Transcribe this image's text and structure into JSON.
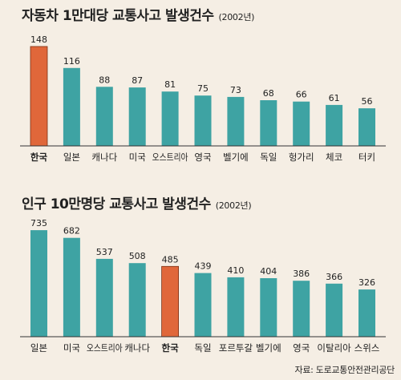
{
  "chart_data": [
    {
      "type": "bar",
      "title": "자동차 1만대당 교통사고 발생건수",
      "subtitle": "(2002년)",
      "categories": [
        "한국",
        "일본",
        "캐나다",
        "미국",
        "오스트리아",
        "영국",
        "벨기에",
        "독일",
        "헝가리",
        "체코",
        "터키"
      ],
      "values": [
        148,
        116,
        88,
        87,
        81,
        75,
        73,
        68,
        66,
        61,
        56
      ],
      "highlight_category": "한국",
      "ylim": [
        0,
        160
      ],
      "grid": false,
      "colors": {
        "bar": "#3ea3a3",
        "highlight": "#e0673a"
      }
    },
    {
      "type": "bar",
      "title": "인구 10만명당 교통사고 발생건수",
      "subtitle": "(2002년)",
      "categories": [
        "일본",
        "미국",
        "오스트리아",
        "캐나다",
        "한국",
        "독일",
        "포르투갈",
        "벨기에",
        "영국",
        "이탈리아",
        "스위스"
      ],
      "values": [
        735,
        682,
        537,
        508,
        485,
        439,
        410,
        404,
        386,
        366,
        326
      ],
      "highlight_category": "한국",
      "ylim": [
        0,
        780
      ],
      "grid": false,
      "colors": {
        "bar": "#3ea3a3",
        "highlight": "#e0673a"
      }
    }
  ],
  "source": "자료: 도로교통안전관리공단"
}
